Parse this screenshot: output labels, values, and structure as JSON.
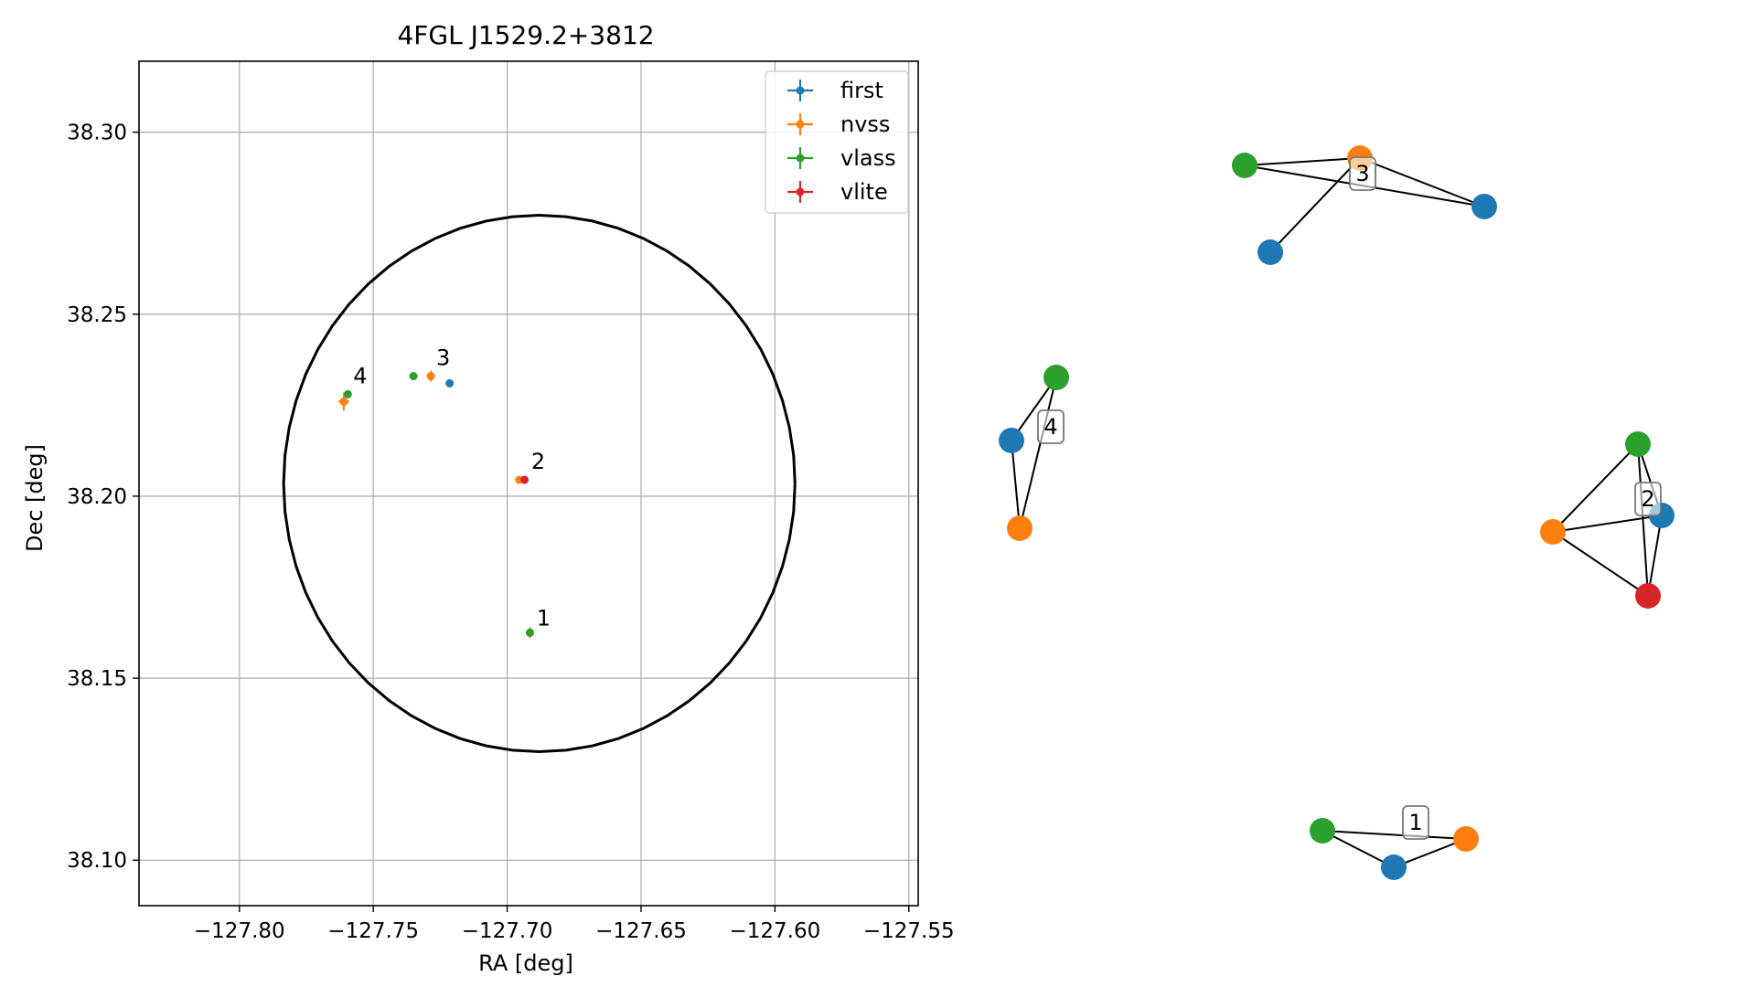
{
  "chart_data": [
    {
      "type": "scatter",
      "title": "4FGL J1529.2+3812",
      "xlabel": "RA [deg]",
      "ylabel": "Dec [deg]",
      "xlim": [
        -127.8375,
        -127.5465
      ],
      "ylim": [
        38.0875,
        38.3195
      ],
      "xticks": [
        -127.8,
        -127.75,
        -127.7,
        -127.65,
        -127.6,
        -127.55
      ],
      "xtick_labels": [
        "−127.80",
        "−127.75",
        "−127.70",
        "−127.65",
        "−127.60",
        "−127.55"
      ],
      "yticks": [
        38.1,
        38.15,
        38.2,
        38.25,
        38.3
      ],
      "ytick_labels": [
        "38.10",
        "38.15",
        "38.20",
        "38.25",
        "38.30"
      ],
      "grid": true,
      "legend_position": "upper-right",
      "ellipse": {
        "center": [
          -127.688,
          38.2035
        ],
        "half_width": 0.0955,
        "half_height": 0.0737
      },
      "series": [
        {
          "name": "first",
          "color": "#1f77b4",
          "points": [
            {
              "x": -127.7215,
              "y": 38.231,
              "xerr": 0.0005,
              "yerr": 0.0005
            }
          ]
        },
        {
          "name": "nvss",
          "color": "#ff7f0e",
          "points": [
            {
              "x": -127.761,
              "y": 38.226,
              "xerr": 0.002,
              "yerr": 0.0025
            },
            {
              "x": -127.7285,
              "y": 38.233,
              "xerr": 0.0015,
              "yerr": 0.0015
            },
            {
              "x": -127.6955,
              "y": 38.2045,
              "xerr": 0.001,
              "yerr": 0.001
            },
            {
              "x": -127.6915,
              "y": 38.1625,
              "xerr": 0.001,
              "yerr": 0.0015
            }
          ]
        },
        {
          "name": "vlass",
          "color": "#2ca02c",
          "points": [
            {
              "x": -127.7595,
              "y": 38.228,
              "xerr": 0.0005,
              "yerr": 0.0005
            },
            {
              "x": -127.735,
              "y": 38.233,
              "xerr": 0.0005,
              "yerr": 0.0005
            },
            {
              "x": -127.6915,
              "y": 38.1625,
              "xerr": 0.0005,
              "yerr": 0.001
            }
          ]
        },
        {
          "name": "vlite",
          "color": "#d62728",
          "points": [
            {
              "x": -127.6935,
              "y": 38.2045,
              "xerr": 0.001,
              "yerr": 0.0005
            }
          ]
        }
      ],
      "annotations": [
        {
          "text": "1",
          "x": -127.689,
          "y": 38.1645
        },
        {
          "text": "2",
          "x": -127.691,
          "y": 38.2075
        },
        {
          "text": "3",
          "x": -127.7265,
          "y": 38.236
        },
        {
          "text": "4",
          "x": -127.7575,
          "y": 38.231
        }
      ]
    },
    {
      "type": "network",
      "clusters": [
        {
          "label": "3",
          "nodes": [
            {
              "series": "vlass",
              "color": "#2ca02c"
            },
            {
              "series": "nvss",
              "color": "#ff7f0e"
            },
            {
              "series": "first",
              "color": "#1f77b4"
            },
            {
              "series": "first",
              "color": "#1f77b4"
            }
          ],
          "edges": [
            [
              0,
              1
            ],
            [
              0,
              3
            ],
            [
              1,
              2
            ],
            [
              1,
              3
            ]
          ]
        },
        {
          "label": "4",
          "nodes": [
            {
              "series": "vlass",
              "color": "#2ca02c"
            },
            {
              "series": "first",
              "color": "#1f77b4"
            },
            {
              "series": "nvss",
              "color": "#ff7f0e"
            }
          ],
          "edges": [
            [
              0,
              1
            ],
            [
              0,
              2
            ],
            [
              1,
              2
            ]
          ]
        },
        {
          "label": "2",
          "nodes": [
            {
              "series": "vlass",
              "color": "#2ca02c"
            },
            {
              "series": "first",
              "color": "#1f77b4"
            },
            {
              "series": "nvss",
              "color": "#ff7f0e"
            },
            {
              "series": "vlite",
              "color": "#d62728"
            }
          ],
          "edges": [
            [
              0,
              1
            ],
            [
              0,
              2
            ],
            [
              0,
              3
            ],
            [
              1,
              2
            ],
            [
              1,
              3
            ],
            [
              2,
              3
            ]
          ]
        },
        {
          "label": "1",
          "nodes": [
            {
              "series": "vlass",
              "color": "#2ca02c"
            },
            {
              "series": "nvss",
              "color": "#ff7f0e"
            },
            {
              "series": "first",
              "color": "#1f77b4"
            }
          ],
          "edges": [
            [
              0,
              1
            ],
            [
              0,
              2
            ],
            [
              1,
              2
            ]
          ]
        }
      ]
    }
  ]
}
